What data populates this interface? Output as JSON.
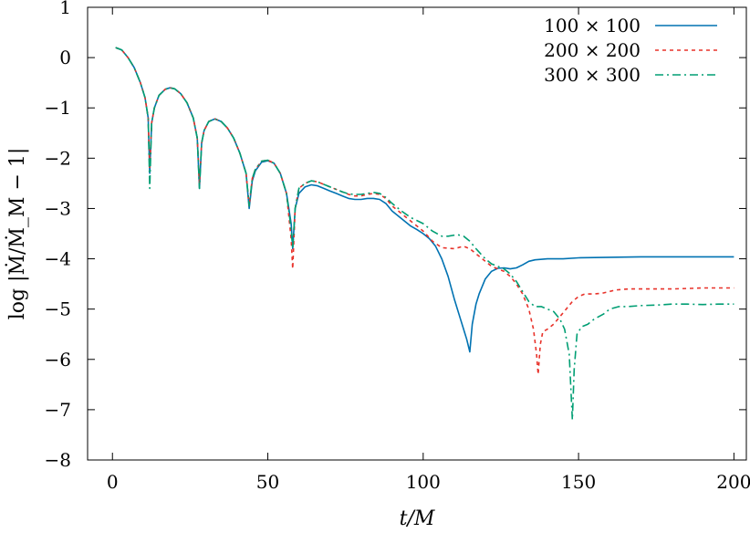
{
  "chart_data": {
    "type": "line",
    "xlabel": "t/M",
    "ylabel": "log |Ṁ/Ṁ_M − 1|",
    "xlim": [
      -8,
      204
    ],
    "ylim": [
      -8,
      1
    ],
    "xticks": [
      0,
      50,
      100,
      150,
      200
    ],
    "yticks": [
      1,
      0,
      -1,
      -2,
      -3,
      -4,
      -5,
      -6,
      -7,
      -8
    ],
    "xtick_labels": [
      "0",
      "50",
      "100",
      "150",
      "200"
    ],
    "ytick_labels": [
      "1",
      "0",
      "−1",
      "−2",
      "−3",
      "−4",
      "−5",
      "−6",
      "−7",
      "−8"
    ],
    "grid": false,
    "legend_position": "top-right",
    "series": [
      {
        "name": "100 × 100",
        "color": "#0072b2",
        "dash": "solid",
        "points": [
          [
            1,
            0.2
          ],
          [
            3,
            0.15
          ],
          [
            5,
            0.0
          ],
          [
            7,
            -0.2
          ],
          [
            9,
            -0.5
          ],
          [
            10.5,
            -0.8
          ],
          [
            11.5,
            -1.2
          ],
          [
            12,
            -2.3
          ],
          [
            12.6,
            -1.3
          ],
          [
            13.5,
            -1.0
          ],
          [
            15,
            -0.75
          ],
          [
            17,
            -0.63
          ],
          [
            18.5,
            -0.6
          ],
          [
            20,
            -0.62
          ],
          [
            22,
            -0.72
          ],
          [
            24,
            -0.9
          ],
          [
            26,
            -1.2
          ],
          [
            27.3,
            -1.6
          ],
          [
            28,
            -2.6
          ],
          [
            28.7,
            -1.7
          ],
          [
            29.5,
            -1.45
          ],
          [
            31,
            -1.27
          ],
          [
            33,
            -1.22
          ],
          [
            35,
            -1.27
          ],
          [
            37,
            -1.4
          ],
          [
            39,
            -1.6
          ],
          [
            41,
            -1.9
          ],
          [
            43,
            -2.3
          ],
          [
            44,
            -3.0
          ],
          [
            45,
            -2.45
          ],
          [
            46,
            -2.25
          ],
          [
            48,
            -2.08
          ],
          [
            50,
            -2.05
          ],
          [
            52,
            -2.1
          ],
          [
            54,
            -2.3
          ],
          [
            56,
            -2.7
          ],
          [
            57.5,
            -3.3
          ],
          [
            58,
            -3.8
          ],
          [
            58.8,
            -3.0
          ],
          [
            60,
            -2.7
          ],
          [
            62,
            -2.57
          ],
          [
            64,
            -2.53
          ],
          [
            66,
            -2.55
          ],
          [
            68,
            -2.6
          ],
          [
            70,
            -2.65
          ],
          [
            72,
            -2.7
          ],
          [
            74,
            -2.75
          ],
          [
            76,
            -2.8
          ],
          [
            78,
            -2.82
          ],
          [
            80,
            -2.82
          ],
          [
            82,
            -2.8
          ],
          [
            84,
            -2.8
          ],
          [
            86,
            -2.82
          ],
          [
            88,
            -2.9
          ],
          [
            90,
            -3.05
          ],
          [
            93,
            -3.2
          ],
          [
            96,
            -3.35
          ],
          [
            98,
            -3.42
          ],
          [
            100,
            -3.5
          ],
          [
            102,
            -3.6
          ],
          [
            104,
            -3.75
          ],
          [
            106,
            -4.0
          ],
          [
            108,
            -4.35
          ],
          [
            110,
            -4.8
          ],
          [
            112,
            -5.2
          ],
          [
            114,
            -5.6
          ],
          [
            115,
            -5.85
          ],
          [
            115.8,
            -5.3
          ],
          [
            117,
            -4.9
          ],
          [
            118,
            -4.7
          ],
          [
            120,
            -4.4
          ],
          [
            122,
            -4.25
          ],
          [
            124,
            -4.19
          ],
          [
            126,
            -4.18
          ],
          [
            128,
            -4.2
          ],
          [
            130,
            -4.18
          ],
          [
            132,
            -4.12
          ],
          [
            134,
            -4.05
          ],
          [
            136,
            -4.02
          ],
          [
            140,
            -4.0
          ],
          [
            145,
            -4.0
          ],
          [
            150,
            -3.98
          ],
          [
            160,
            -3.97
          ],
          [
            170,
            -3.96
          ],
          [
            180,
            -3.96
          ],
          [
            190,
            -3.96
          ],
          [
            200,
            -3.96
          ]
        ]
      },
      {
        "name": "200 × 200",
        "color": "#e8322a",
        "dash": "4,4",
        "points": [
          [
            1,
            0.2
          ],
          [
            3,
            0.15
          ],
          [
            5,
            0.0
          ],
          [
            7,
            -0.2
          ],
          [
            9,
            -0.5
          ],
          [
            10.5,
            -0.8
          ],
          [
            11.5,
            -1.2
          ],
          [
            12,
            -2.2
          ],
          [
            12.6,
            -1.3
          ],
          [
            13.5,
            -1.0
          ],
          [
            15,
            -0.75
          ],
          [
            17,
            -0.63
          ],
          [
            18.5,
            -0.6
          ],
          [
            20,
            -0.62
          ],
          [
            22,
            -0.72
          ],
          [
            24,
            -0.9
          ],
          [
            26,
            -1.2
          ],
          [
            27.3,
            -1.6
          ],
          [
            28,
            -2.5
          ],
          [
            28.7,
            -1.7
          ],
          [
            29.5,
            -1.45
          ],
          [
            31,
            -1.27
          ],
          [
            33,
            -1.22
          ],
          [
            35,
            -1.27
          ],
          [
            37,
            -1.4
          ],
          [
            39,
            -1.6
          ],
          [
            41,
            -1.9
          ],
          [
            43,
            -2.3
          ],
          [
            44,
            -2.95
          ],
          [
            45,
            -2.4
          ],
          [
            46,
            -2.22
          ],
          [
            48,
            -2.06
          ],
          [
            50,
            -2.04
          ],
          [
            52,
            -2.1
          ],
          [
            54,
            -2.3
          ],
          [
            56,
            -2.7
          ],
          [
            57.5,
            -3.6
          ],
          [
            58,
            -4.2
          ],
          [
            58.8,
            -3.0
          ],
          [
            60,
            -2.6
          ],
          [
            62,
            -2.5
          ],
          [
            64,
            -2.45
          ],
          [
            66,
            -2.47
          ],
          [
            68,
            -2.52
          ],
          [
            70,
            -2.57
          ],
          [
            72,
            -2.62
          ],
          [
            74,
            -2.67
          ],
          [
            76,
            -2.72
          ],
          [
            78,
            -2.75
          ],
          [
            80,
            -2.75
          ],
          [
            82,
            -2.72
          ],
          [
            84,
            -2.7
          ],
          [
            86,
            -2.72
          ],
          [
            88,
            -2.8
          ],
          [
            90,
            -2.95
          ],
          [
            93,
            -3.1
          ],
          [
            96,
            -3.25
          ],
          [
            100,
            -3.45
          ],
          [
            103,
            -3.65
          ],
          [
            106,
            -3.78
          ],
          [
            110,
            -3.8
          ],
          [
            113,
            -3.75
          ],
          [
            115,
            -3.8
          ],
          [
            118,
            -3.95
          ],
          [
            120,
            -4.05
          ],
          [
            122,
            -4.15
          ],
          [
            124,
            -4.2
          ],
          [
            126,
            -4.25
          ],
          [
            128,
            -4.35
          ],
          [
            130,
            -4.5
          ],
          [
            132,
            -4.7
          ],
          [
            134,
            -5.0
          ],
          [
            135.5,
            -5.4
          ],
          [
            136.5,
            -5.9
          ],
          [
            137,
            -6.3
          ],
          [
            137.7,
            -5.7
          ],
          [
            138.5,
            -5.45
          ],
          [
            140,
            -5.4
          ],
          [
            142,
            -5.3
          ],
          [
            144,
            -5.15
          ],
          [
            146,
            -5.0
          ],
          [
            148,
            -4.85
          ],
          [
            150,
            -4.75
          ],
          [
            152,
            -4.7
          ],
          [
            155,
            -4.7
          ],
          [
            158,
            -4.68
          ],
          [
            162,
            -4.62
          ],
          [
            166,
            -4.6
          ],
          [
            170,
            -4.6
          ],
          [
            175,
            -4.6
          ],
          [
            180,
            -4.6
          ],
          [
            185,
            -4.59
          ],
          [
            190,
            -4.58
          ],
          [
            200,
            -4.58
          ]
        ]
      },
      {
        "name": "300 × 300",
        "color": "#009e73",
        "dash": "9,4,2,4",
        "points": [
          [
            1,
            0.2
          ],
          [
            3,
            0.15
          ],
          [
            5,
            0.0
          ],
          [
            7,
            -0.2
          ],
          [
            9,
            -0.5
          ],
          [
            10.5,
            -0.8
          ],
          [
            11.5,
            -1.2
          ],
          [
            12,
            -2.6
          ],
          [
            12.6,
            -1.3
          ],
          [
            13.5,
            -1.0
          ],
          [
            15,
            -0.75
          ],
          [
            17,
            -0.63
          ],
          [
            18.5,
            -0.6
          ],
          [
            20,
            -0.62
          ],
          [
            22,
            -0.72
          ],
          [
            24,
            -0.9
          ],
          [
            26,
            -1.2
          ],
          [
            27.3,
            -1.6
          ],
          [
            28,
            -2.6
          ],
          [
            28.7,
            -1.7
          ],
          [
            29.5,
            -1.45
          ],
          [
            31,
            -1.27
          ],
          [
            33,
            -1.22
          ],
          [
            35,
            -1.27
          ],
          [
            37,
            -1.4
          ],
          [
            39,
            -1.6
          ],
          [
            41,
            -1.9
          ],
          [
            43,
            -2.3
          ],
          [
            44,
            -2.95
          ],
          [
            45,
            -2.4
          ],
          [
            46,
            -2.22
          ],
          [
            48,
            -2.06
          ],
          [
            50,
            -2.04
          ],
          [
            52,
            -2.1
          ],
          [
            54,
            -2.3
          ],
          [
            56,
            -2.7
          ],
          [
            57.5,
            -3.4
          ],
          [
            58,
            -3.8
          ],
          [
            58.8,
            -3.0
          ],
          [
            60,
            -2.6
          ],
          [
            62,
            -2.5
          ],
          [
            64,
            -2.45
          ],
          [
            66,
            -2.47
          ],
          [
            68,
            -2.52
          ],
          [
            70,
            -2.57
          ],
          [
            72,
            -2.62
          ],
          [
            74,
            -2.67
          ],
          [
            76,
            -2.71
          ],
          [
            78,
            -2.72
          ],
          [
            80,
            -2.72
          ],
          [
            82,
            -2.7
          ],
          [
            84,
            -2.68
          ],
          [
            86,
            -2.7
          ],
          [
            88,
            -2.78
          ],
          [
            90,
            -2.9
          ],
          [
            93,
            -3.05
          ],
          [
            96,
            -3.18
          ],
          [
            100,
            -3.3
          ],
          [
            103,
            -3.45
          ],
          [
            106,
            -3.55
          ],
          [
            108,
            -3.55
          ],
          [
            111,
            -3.52
          ],
          [
            113,
            -3.55
          ],
          [
            115,
            -3.65
          ],
          [
            117,
            -3.8
          ],
          [
            120,
            -4.0
          ],
          [
            122,
            -4.1
          ],
          [
            124,
            -4.15
          ],
          [
            126,
            -4.2
          ],
          [
            128,
            -4.3
          ],
          [
            130,
            -4.45
          ],
          [
            132,
            -4.65
          ],
          [
            134,
            -4.85
          ],
          [
            136,
            -4.95
          ],
          [
            138,
            -4.95
          ],
          [
            140,
            -5.0
          ],
          [
            142,
            -5.05
          ],
          [
            144,
            -5.2
          ],
          [
            145.5,
            -5.4
          ],
          [
            147,
            -5.9
          ],
          [
            148,
            -7.2
          ],
          [
            148.6,
            -6.2
          ],
          [
            149.5,
            -5.5
          ],
          [
            151,
            -5.35
          ],
          [
            153,
            -5.3
          ],
          [
            155,
            -5.2
          ],
          [
            158,
            -5.1
          ],
          [
            160,
            -5.0
          ],
          [
            163,
            -4.95
          ],
          [
            166,
            -4.95
          ],
          [
            170,
            -4.93
          ],
          [
            175,
            -4.92
          ],
          [
            180,
            -4.9
          ],
          [
            185,
            -4.9
          ],
          [
            190,
            -4.91
          ],
          [
            195,
            -4.9
          ],
          [
            200,
            -4.9
          ]
        ]
      }
    ]
  }
}
